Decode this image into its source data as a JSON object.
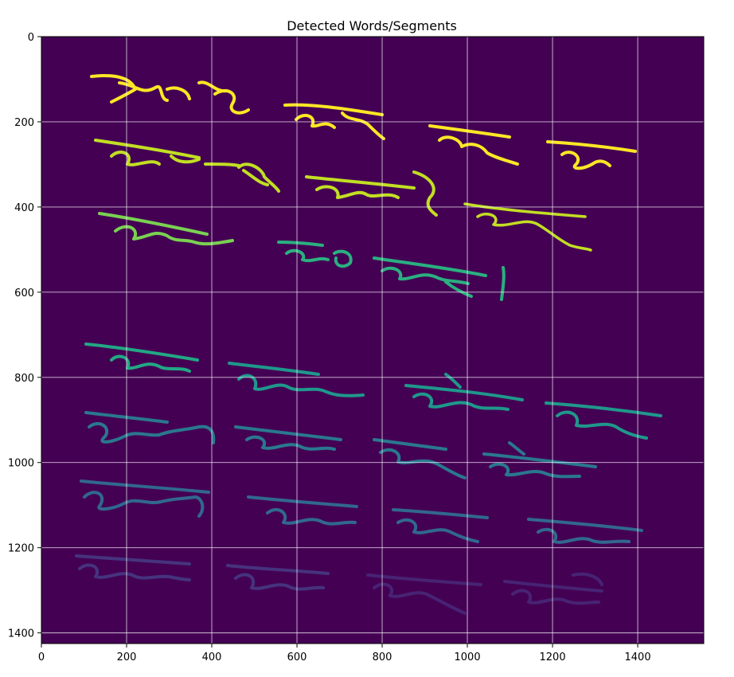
{
  "chart_data": {
    "type": "heatmap",
    "title": "Detected Words/Segments",
    "xlabel": "",
    "ylabel": "",
    "xlim": [
      0,
      1555
    ],
    "ylim": [
      1425,
      0
    ],
    "xticks": [
      0,
      200,
      400,
      600,
      800,
      1000,
      1200,
      1400
    ],
    "yticks": [
      0,
      200,
      400,
      600,
      800,
      1000,
      1200,
      1400
    ],
    "grid": true,
    "colormap": "viridis",
    "background_color": "#440154",
    "lines": [
      {
        "name": "line-1",
        "color": "#fde725",
        "y_center": 170,
        "x_range": [
          115,
          800
        ]
      },
      {
        "name": "line-2",
        "color": "#c2df23",
        "y_center": 280,
        "x_range": [
          120,
          735
        ]
      },
      {
        "name": "line-3",
        "color": "#7ad151",
        "y_center": 480,
        "x_range": [
          125,
          1085
        ]
      },
      {
        "name": "line-4",
        "color": "#2a9d8a",
        "y_center": 830,
        "x_range": [
          105,
          1460
        ]
      },
      {
        "name": "line-5",
        "color": "#2a7c8e",
        "y_center": 960,
        "x_range": [
          100,
          1390
        ]
      },
      {
        "name": "line-6",
        "color": "#32648e",
        "y_center": 1130,
        "x_range": [
          95,
          1390
        ]
      },
      {
        "name": "line-7",
        "color": "#443a83",
        "y_center": 1260,
        "x_range": [
          90,
          1310
        ]
      }
    ]
  }
}
